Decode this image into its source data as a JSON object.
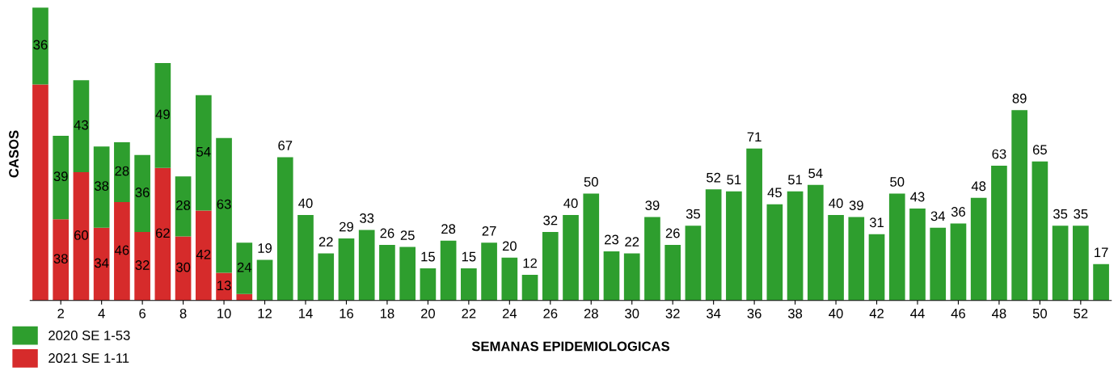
{
  "chart_data": {
    "type": "bar",
    "stacked": true,
    "xlabel": "SEMANAS EPIDEMIOLOGICAS",
    "ylabel": "CASOS",
    "legend": "bottom left",
    "grid": false,
    "categories": [
      null,
      "2",
      null,
      "4",
      null,
      "6",
      null,
      "8",
      null,
      "10",
      null,
      "12",
      null,
      "14",
      null,
      "16",
      null,
      "18",
      null,
      "20",
      null,
      "22",
      null,
      "24",
      null,
      "26",
      null,
      "28",
      null,
      "30",
      null,
      "32",
      null,
      "34",
      null,
      "36",
      null,
      "38",
      null,
      "40",
      null,
      "42",
      null,
      "44",
      null,
      "46",
      null,
      "48",
      null,
      "50",
      null,
      "52",
      null
    ],
    "series": [
      {
        "name": "2021 SE 1-11",
        "color": "#d62b2b",
        "values": [
          101,
          38,
          60,
          34,
          46,
          32,
          62,
          30,
          42,
          13,
          3,
          null,
          null,
          null,
          null,
          null,
          null,
          null,
          null,
          null,
          null,
          null,
          null,
          null,
          null,
          null,
          null,
          null,
          null,
          null,
          null,
          null,
          null,
          null,
          null,
          null,
          null,
          null,
          null,
          null,
          null,
          null,
          null,
          null,
          null,
          null,
          null,
          null,
          null,
          null,
          null,
          null,
          null
        ],
        "value_labels": [
          null,
          "38",
          "60",
          "34",
          "46",
          "32",
          "62",
          "30",
          "42",
          "13",
          null,
          null,
          null,
          null,
          null,
          null,
          null,
          null,
          null,
          null,
          null,
          null,
          null,
          null,
          null,
          null,
          null,
          null,
          null,
          null,
          null,
          null,
          null,
          null,
          null,
          null,
          null,
          null,
          null,
          null,
          null,
          null,
          null,
          null,
          null,
          null,
          null,
          null,
          null,
          null,
          null,
          null,
          null
        ]
      },
      {
        "name": "2020 SE 1-53",
        "color": "#2e9e2e",
        "values": [
          36,
          39,
          43,
          38,
          28,
          36,
          49,
          28,
          54,
          63,
          24,
          19,
          67,
          40,
          22,
          29,
          33,
          26,
          25,
          15,
          28,
          15,
          27,
          20,
          12,
          32,
          40,
          50,
          23,
          22,
          39,
          26,
          35,
          52,
          51,
          71,
          45,
          51,
          54,
          40,
          39,
          31,
          50,
          43,
          34,
          36,
          48,
          63,
          89,
          65,
          35,
          35,
          17
        ],
        "value_labels": [
          "36",
          "39",
          "43",
          "38",
          "28",
          "36",
          "49",
          "28",
          "54",
          "63",
          "24",
          "19",
          "67",
          "40",
          "22",
          "29",
          "33",
          "26",
          "25",
          "15",
          "28",
          "15",
          "27",
          "20",
          "12",
          "32",
          "40",
          "50",
          "23",
          "22",
          "39",
          "26",
          "35",
          "52",
          "51",
          "71",
          "45",
          "51",
          "54",
          "40",
          "39",
          "31",
          "50",
          "43",
          "34",
          "36",
          "48",
          "63",
          "89",
          "65",
          "35",
          "35",
          "17"
        ]
      }
    ]
  }
}
